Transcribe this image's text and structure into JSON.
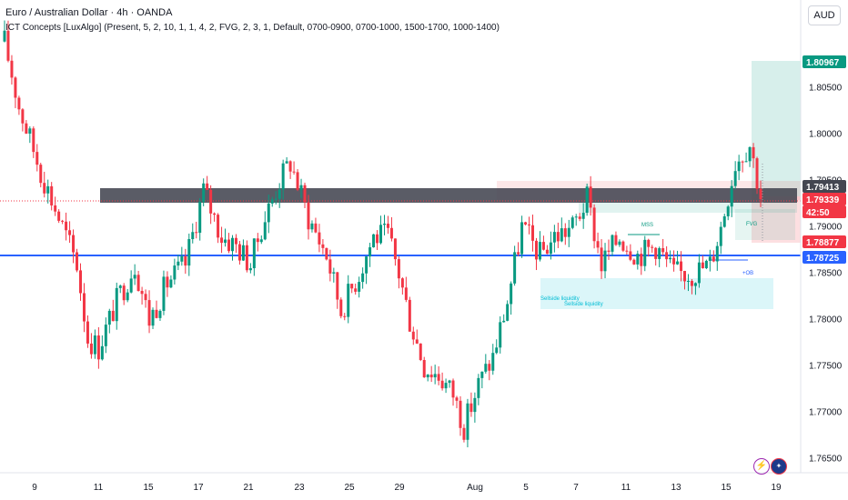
{
  "header": {
    "title": "Euro / Australian Dollar · 4h · OANDA",
    "indicator": "ICT Concepts [LuxAlgo] (Present, 5, 2, 10, 1, 1, 4, 2, FVG, 2, 3, 1, Default, 0700-0900, 0700-1000, 1500-1700, 1000-1400)",
    "currency": "AUD"
  },
  "price_badges": [
    {
      "value": "1.80967",
      "color": "#089981"
    },
    {
      "value": "1.79413",
      "color": "#434651"
    },
    {
      "value": "1.79339",
      "color": "#f23645"
    },
    {
      "value": "42:50",
      "color": "#f23645"
    },
    {
      "value": "1.78877",
      "color": "#f23645"
    },
    {
      "value": "1.78725",
      "color": "#2962ff"
    }
  ],
  "annotations": {
    "fvg": "FVG",
    "ob": "+OB",
    "sellside1": "Sellside liquidity",
    "sellside2": "Sellside liquidity",
    "mss": "MSS"
  },
  "icons": [
    "lightning-icon",
    "australia-flag-icon"
  ],
  "colors": {
    "up": "#089981",
    "down": "#f23645",
    "blue_line": "#2962ff",
    "ob_zone": "#434651"
  },
  "chart_data": {
    "type": "candlestick",
    "symbol": "EURAUD",
    "timeframe": "4h",
    "ylim": [
      1.7635,
      1.8135
    ],
    "y_ticks": [
      "1.80500",
      "1.80000",
      "1.79500",
      "1.79000",
      "1.78500",
      "1.78000",
      "1.77500",
      "1.77000",
      "1.76500"
    ],
    "x_ticks": [
      "9",
      "11",
      "15",
      "17",
      "21",
      "23",
      "25",
      "29",
      "Aug",
      "5",
      "7",
      "11",
      "13",
      "15",
      "19"
    ],
    "horizontal_levels": [
      1.78725,
      1.79413
    ],
    "key_prices": {
      "target": 1.80967,
      "current": 1.79339,
      "level": 1.78877,
      "blue": 1.78725,
      "ob": 1.79413
    },
    "path": [
      [
        0,
        1.81
      ],
      [
        4,
        1.803
      ],
      [
        10,
        1.796
      ],
      [
        16,
        1.79
      ],
      [
        20,
        1.786
      ],
      [
        23,
        1.778
      ],
      [
        26,
        1.777
      ],
      [
        31,
        1.782
      ],
      [
        36,
        1.786
      ],
      [
        40,
        1.78
      ],
      [
        45,
        1.784
      ],
      [
        50,
        1.786
      ],
      [
        55,
        1.794
      ],
      [
        60,
        1.789
      ],
      [
        64,
        1.788
      ],
      [
        68,
        1.786
      ],
      [
        71,
        1.79
      ],
      [
        76,
        1.795
      ],
      [
        79,
        1.797
      ],
      [
        84,
        1.791
      ],
      [
        89,
        1.787
      ],
      [
        93,
        1.781
      ],
      [
        98,
        1.785
      ],
      [
        102,
        1.789
      ],
      [
        106,
        1.789
      ],
      [
        109,
        1.785
      ],
      [
        112,
        1.78
      ],
      [
        116,
        1.775
      ],
      [
        120,
        1.774
      ],
      [
        124,
        1.772
      ],
      [
        127,
        1.7685
      ],
      [
        131,
        1.773
      ],
      [
        135,
        1.776
      ],
      [
        139,
        1.782
      ],
      [
        143,
        1.79
      ],
      [
        148,
        1.787
      ],
      [
        152,
        1.789
      ],
      [
        157,
        1.79
      ],
      [
        161,
        1.793
      ],
      [
        165,
        1.786
      ],
      [
        170,
        1.789
      ],
      [
        175,
        1.787
      ],
      [
        180,
        1.788
      ],
      [
        185,
        1.785
      ],
      [
        190,
        1.785
      ],
      [
        195,
        1.786
      ],
      [
        198,
        1.79
      ],
      [
        202,
        1.797
      ],
      [
        206,
        1.799
      ],
      [
        209,
        1.7934
      ]
    ]
  }
}
